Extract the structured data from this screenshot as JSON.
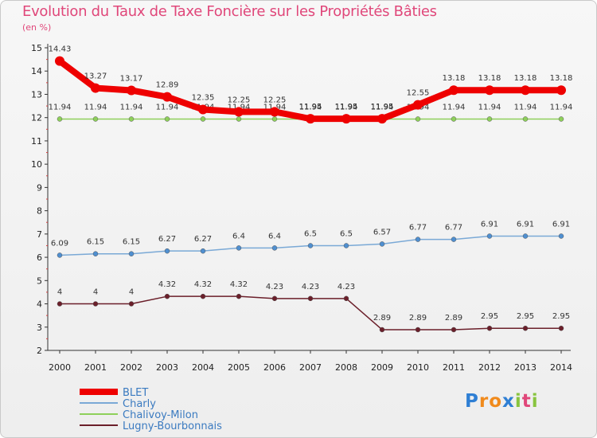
{
  "chart_data": {
    "type": "line",
    "title": "Evolution du Taux de Taxe Foncière sur les Propriétés Bâties",
    "unit_label": "(en %)",
    "x": [
      "2000",
      "2001",
      "2002",
      "2003",
      "2004",
      "2005",
      "2006",
      "2007",
      "2008",
      "2009",
      "2010",
      "2011",
      "2012",
      "2013",
      "2014"
    ],
    "ylim": [
      2,
      15
    ],
    "yticks": [
      2,
      3,
      4,
      5,
      6,
      7,
      8,
      9,
      10,
      11,
      12,
      13,
      14,
      15
    ],
    "series": [
      {
        "name": "Chalivoy-Milon",
        "color": "#8ed05a",
        "point_color": "#8ed05a",
        "width": 1.5,
        "values": [
          11.94,
          11.94,
          11.94,
          11.94,
          11.94,
          11.94,
          11.94,
          11.94,
          11.94,
          11.94,
          11.94,
          11.94,
          11.94,
          11.94,
          11.94
        ],
        "labels": [
          "11.94",
          "11.94",
          "11.94",
          "11.94",
          "11.94",
          "11.94",
          "11.94",
          "11.94",
          "11.94",
          "11.94",
          "11.94",
          "11.94",
          "11.94",
          "11.94",
          "11.94"
        ]
      },
      {
        "name": "Charly",
        "color": "#7aa9d6",
        "point_color": "#4f8fd0",
        "width": 1.5,
        "values": [
          6.09,
          6.15,
          6.15,
          6.27,
          6.27,
          6.4,
          6.4,
          6.5,
          6.5,
          6.57,
          6.77,
          6.77,
          6.91,
          6.91,
          6.91
        ],
        "labels": [
          "6.09",
          "6.15",
          "6.15",
          "6.27",
          "6.27",
          "6.4",
          "6.4",
          "6.5",
          "6.5",
          "6.57",
          "6.77",
          "6.77",
          "6.91",
          "6.91",
          "6.91"
        ]
      },
      {
        "name": "Lugny-Bourbonnais",
        "color": "#6b1f2a",
        "point_color": "#6b1f2a",
        "width": 1.5,
        "values": [
          4,
          4,
          4,
          4.32,
          4.32,
          4.32,
          4.23,
          4.23,
          4.23,
          2.89,
          2.89,
          2.89,
          2.95,
          2.95,
          2.95
        ],
        "labels": [
          "4",
          "4",
          "4",
          "4.32",
          "4.32",
          "4.32",
          "4.23",
          "4.23",
          "4.23",
          "2.89",
          "2.89",
          "2.89",
          "2.95",
          "2.95",
          "2.95"
        ]
      },
      {
        "name": "BLET",
        "color": "#ee0000",
        "point_color": "#ee0000",
        "width": 8,
        "values": [
          14.43,
          13.27,
          13.17,
          12.89,
          12.35,
          12.25,
          12.25,
          11.95,
          11.95,
          11.95,
          12.55,
          13.18,
          13.18,
          13.18,
          13.18
        ],
        "labels": [
          "14.43",
          "13.27",
          "13.17",
          "12.89",
          "12.35",
          "12.25",
          "12.25",
          "11.95",
          "11.95",
          "11.95",
          "12.55",
          "13.18",
          "13.18",
          "13.18",
          "13.18"
        ]
      }
    ],
    "legend": [
      "BLET",
      "Charly",
      "Chalivoy-Milon",
      "Lugny-Bourbonnais"
    ],
    "legend_position": "bottom-left"
  },
  "logo": {
    "letters": [
      "P",
      "r",
      "o",
      "x",
      "i",
      "t",
      "i"
    ],
    "colors": [
      "#2f7fd4",
      "#f08a1c",
      "#f08a1c",
      "#2f7fd4",
      "#88c43f",
      "#e0477a",
      "#88c43f"
    ]
  }
}
